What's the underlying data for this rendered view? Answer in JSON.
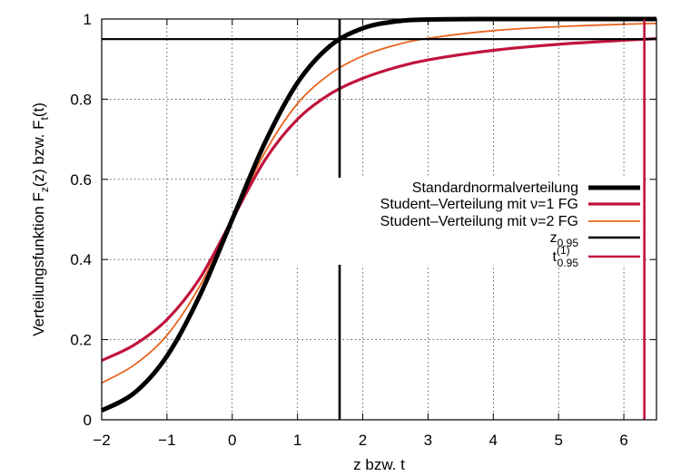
{
  "chart_data": {
    "type": "line",
    "xlabel": "z bzw. t",
    "ylabel_parts": [
      "Verteilungsfunktion F",
      "z",
      "(z) bzw. F",
      "t",
      "(t)"
    ],
    "xlim": [
      -2,
      6.5
    ],
    "ylim": [
      0,
      1
    ],
    "xticks": [
      -2,
      -1,
      0,
      1,
      2,
      3,
      4,
      5,
      6
    ],
    "yticks": [
      0,
      0.2,
      0.4,
      0.6,
      0.8,
      1
    ],
    "xtick_labels": [
      "−2",
      "−1",
      "0",
      "1",
      "2",
      "3",
      "4",
      "5",
      "6"
    ],
    "ytick_labels": [
      "0",
      "0.2",
      "0.4",
      "0.6",
      "0.8",
      "1"
    ],
    "grid": true,
    "legend_position": "center-right",
    "series": [
      {
        "key": "normal",
        "name": "Standardnormalverteilung",
        "color": "#000000",
        "x": [
          -2,
          -1.5,
          -1,
          -0.5,
          0,
          0.5,
          1,
          1.5,
          2,
          2.5,
          3,
          4,
          5,
          6.5
        ],
        "y": [
          0.023,
          0.067,
          0.159,
          0.309,
          0.5,
          0.691,
          0.841,
          0.933,
          0.977,
          0.994,
          0.999,
          1.0,
          1.0,
          1.0
        ]
      },
      {
        "key": "t1",
        "name": "Student–Verteilung mit ν=1 FG",
        "color": "#c0143c",
        "x": [
          -2,
          -1.5,
          -1,
          -0.5,
          0,
          0.5,
          1,
          1.5,
          2,
          2.5,
          3,
          4,
          5,
          6,
          6.5
        ],
        "y": [
          0.148,
          0.187,
          0.25,
          0.352,
          0.5,
          0.648,
          0.75,
          0.813,
          0.852,
          0.879,
          0.898,
          0.922,
          0.937,
          0.947,
          0.951
        ]
      },
      {
        "key": "t2",
        "name": "Student–Verteilung mit ν=2 FG",
        "color": "#e8641e",
        "x": [
          -2,
          -1.5,
          -1,
          -0.5,
          0,
          0.5,
          1,
          1.5,
          2,
          2.5,
          3,
          4,
          5,
          6,
          6.5
        ],
        "y": [
          0.092,
          0.137,
          0.211,
          0.333,
          0.5,
          0.667,
          0.789,
          0.863,
          0.908,
          0.935,
          0.952,
          0.971,
          0.981,
          0.987,
          0.989
        ]
      }
    ],
    "quantiles": [
      {
        "key": "z095",
        "label_main": "z",
        "label_sub": "0.95",
        "label_sup": "",
        "color": "#000000",
        "x": 1.645,
        "y": 0.95
      },
      {
        "key": "t1_095",
        "label_main": "t",
        "label_sub": "0.95",
        "label_sup": "(1)",
        "color": "#c0143c",
        "x": 6.314,
        "y": 0.95
      }
    ]
  }
}
